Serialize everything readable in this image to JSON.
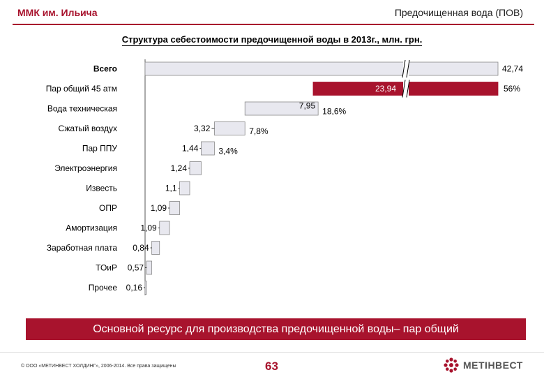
{
  "header": {
    "company": "ММК им. Ильича",
    "section": "Предочищенная вода (ПОВ)"
  },
  "colors": {
    "accent": "#a8132d",
    "bar_fill": "#e8e8ef",
    "bar_stroke": "#888888"
  },
  "chart_data": {
    "type": "bar",
    "orientation": "horizontal-waterfall",
    "title": "Структура себестоимости предочищенной воды в 2013г., млн. грн.",
    "categories": [
      "Всего",
      "Пар общий 45 атм",
      "Вода техническая",
      "Сжатый воздух",
      "Пар ППУ",
      "Электроэнергия",
      "Известь",
      "ОПР",
      "Амортизация",
      "Заработная плата",
      "ТОиР",
      "Прочее"
    ],
    "values": [
      42.74,
      23.94,
      7.95,
      3.32,
      1.44,
      1.24,
      1.1,
      1.09,
      1.09,
      0.84,
      0.57,
      0.16
    ],
    "value_labels": [
      "42,74",
      "23,94",
      "7,95",
      "3,32",
      "1,44",
      "1,24",
      "1,1",
      "1,09",
      "1,09",
      "0,84",
      "0,57",
      "0,16"
    ],
    "percent_labels": [
      "",
      "56%",
      "18,6%",
      "7,8%",
      "3,4%",
      "",
      "",
      "",
      "",
      "",
      "",
      ""
    ],
    "axis_break": true,
    "highlight_index": 1
  },
  "banner": {
    "text": "Основной ресурс для производства предочищенной воды– пар общий"
  },
  "footer": {
    "copyright": "© ООО «МЕТИНВЕСТ ХОЛДИНГ», 2006-2014. Все права защищены",
    "page": "63",
    "logo_text": "МЕТІНВЕСТ"
  }
}
